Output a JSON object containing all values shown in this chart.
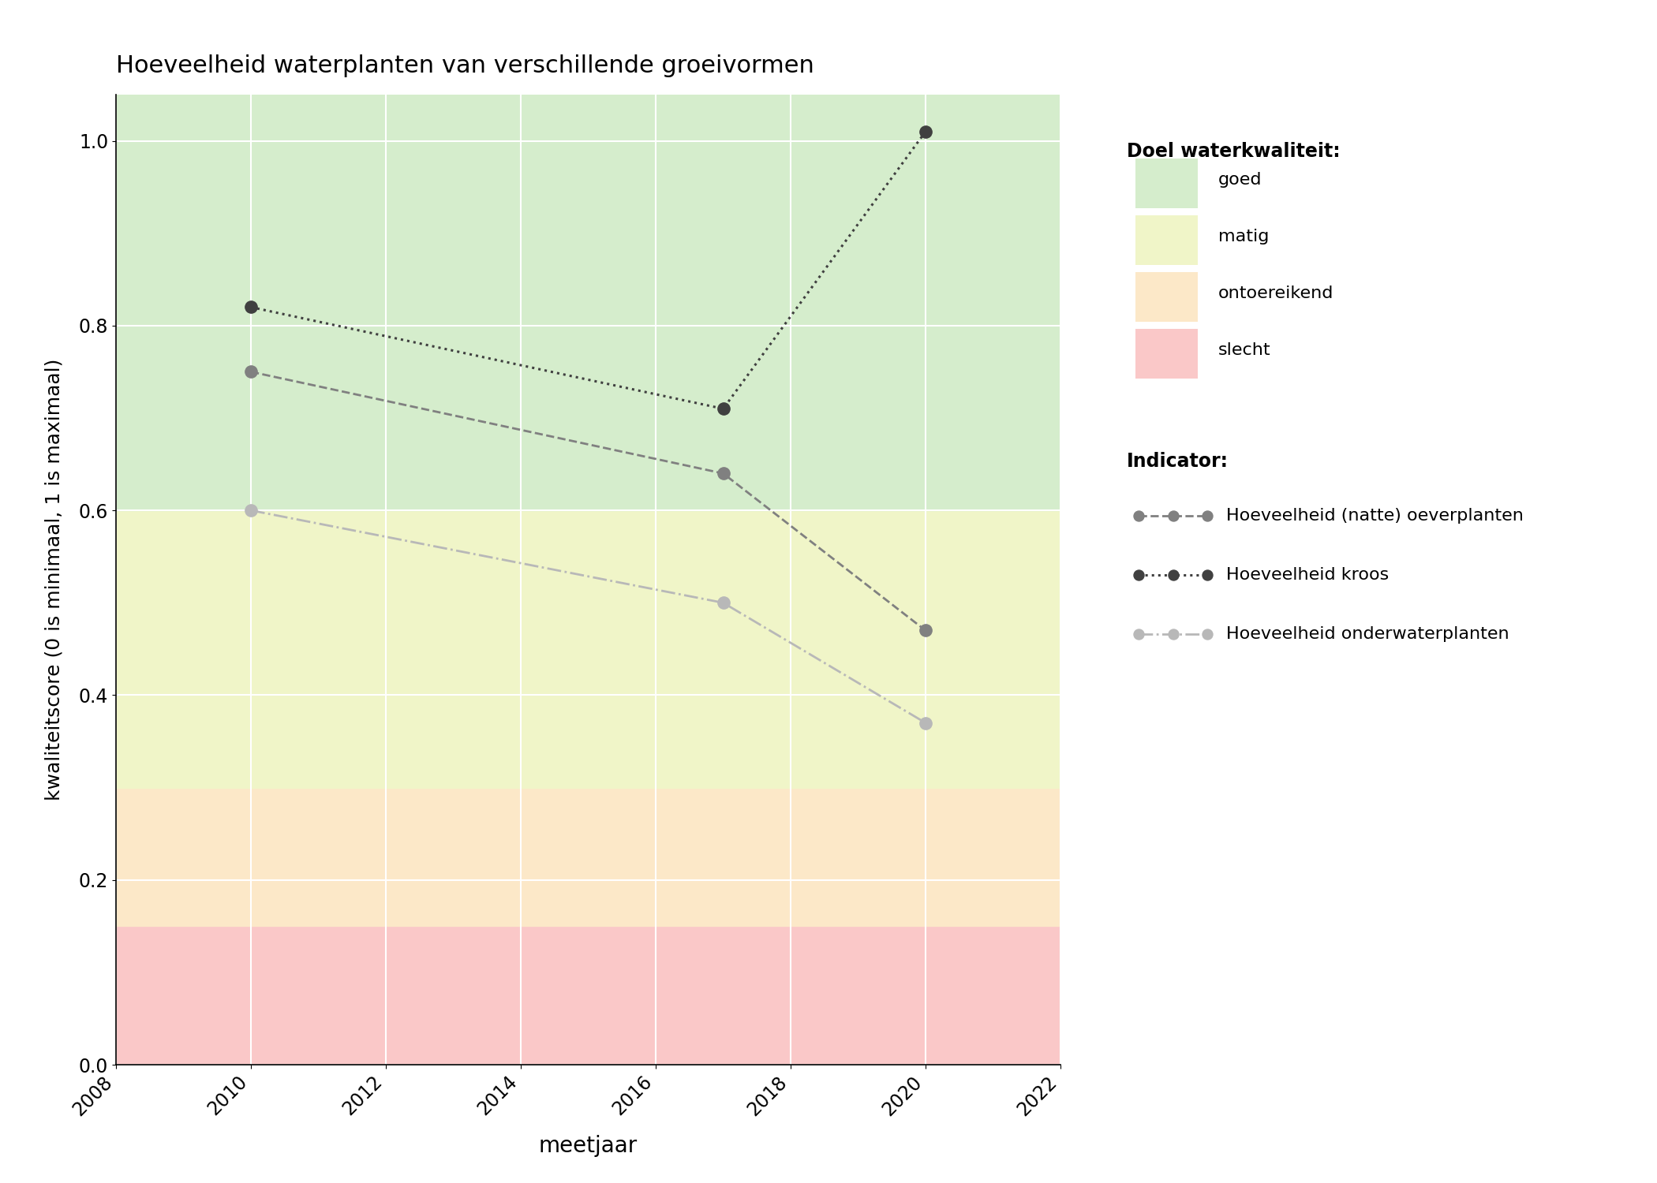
{
  "title": "Hoeveelheid waterplanten van verschillende groeivormen",
  "xlabel": "meetjaar",
  "ylabel": "kwaliteitscore (0 is minimaal, 1 is maximaal)",
  "xlim": [
    2008,
    2022
  ],
  "ylim": [
    0.0,
    1.05
  ],
  "xticks": [
    2008,
    2010,
    2012,
    2014,
    2016,
    2018,
    2020,
    2022
  ],
  "yticks": [
    0.0,
    0.2,
    0.4,
    0.6,
    0.8,
    1.0
  ],
  "bg_colors": {
    "goed": "#d5edcc",
    "matig": "#f0f5c8",
    "ontoereikend": "#fce8c8",
    "slecht": "#fac8c8"
  },
  "bg_ranges": {
    "goed": [
      0.6,
      1.05
    ],
    "matig": [
      0.3,
      0.6
    ],
    "ontoereikend": [
      0.15,
      0.3
    ],
    "slecht": [
      0.0,
      0.15
    ]
  },
  "series": {
    "oeverplanten": {
      "years": [
        2010,
        2017,
        2020
      ],
      "values": [
        0.75,
        0.64,
        0.47
      ],
      "color": "#808080",
      "linestyle": "--",
      "marker": "o",
      "markercolor": "#808080",
      "markersize": 11,
      "linewidth": 2.0,
      "label": "Hoeveelheid (natte) oeverplanten"
    },
    "kroos": {
      "years": [
        2010,
        2017,
        2020
      ],
      "values": [
        0.82,
        0.71,
        1.01
      ],
      "color": "#404040",
      "linestyle": ":",
      "marker": "o",
      "markercolor": "#404040",
      "markersize": 11,
      "linewidth": 2.2,
      "label": "Hoeveelheid kroos"
    },
    "onderwaterplanten": {
      "years": [
        2010,
        2017,
        2020
      ],
      "values": [
        0.6,
        0.5,
        0.37
      ],
      "color": "#b8b8b8",
      "linestyle": "-.",
      "marker": "o",
      "markercolor": "#b8b8b8",
      "markersize": 11,
      "linewidth": 2.0,
      "label": "Hoeveelheid onderwaterplanten"
    }
  },
  "legend_quality_title": "Doel waterkwaliteit:",
  "legend_indicator_title": "Indicator:",
  "background_color": "#ffffff"
}
